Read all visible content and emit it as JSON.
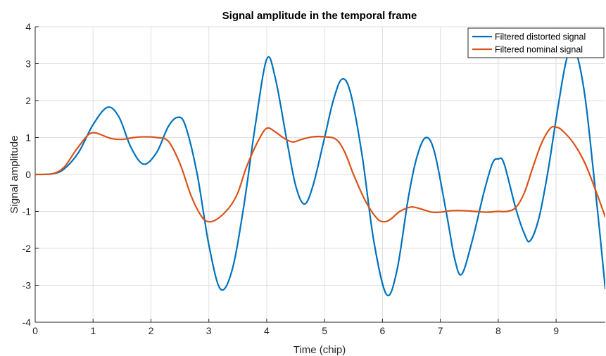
{
  "chart_data": {
    "type": "line",
    "title": "Signal amplitude in the temporal frame",
    "xlabel": "Time (chip)",
    "ylabel": "Signal amplitude",
    "xlim": [
      0,
      9.85
    ],
    "ylim": [
      -4,
      4
    ],
    "xticks": [
      0,
      1,
      2,
      3,
      4,
      5,
      6,
      7,
      8,
      9
    ],
    "yticks": [
      -4,
      -3,
      -2,
      -1,
      0,
      1,
      2,
      3,
      4
    ],
    "grid": true,
    "legend_position": "top-right",
    "series": [
      {
        "name": "Filtered distorted signal",
        "color": "#0072BD",
        "points": [
          [
            0,
            0
          ],
          [
            0.3,
            0.02
          ],
          [
            0.5,
            0.15
          ],
          [
            0.75,
            0.6
          ],
          [
            1.0,
            1.35
          ],
          [
            1.25,
            1.82
          ],
          [
            1.45,
            1.55
          ],
          [
            1.65,
            0.75
          ],
          [
            1.87,
            0.28
          ],
          [
            2.1,
            0.6
          ],
          [
            2.3,
            1.3
          ],
          [
            2.47,
            1.55
          ],
          [
            2.6,
            1.3
          ],
          [
            2.8,
            0.0
          ],
          [
            3.0,
            -1.9
          ],
          [
            3.2,
            -3.1
          ],
          [
            3.4,
            -2.6
          ],
          [
            3.6,
            -0.9
          ],
          [
            3.8,
            1.3
          ],
          [
            4.0,
            3.12
          ],
          [
            4.15,
            2.6
          ],
          [
            4.35,
            0.9
          ],
          [
            4.5,
            -0.3
          ],
          [
            4.65,
            -0.8
          ],
          [
            4.8,
            -0.3
          ],
          [
            5.0,
            1.0
          ],
          [
            5.15,
            2.0
          ],
          [
            5.3,
            2.58
          ],
          [
            5.45,
            2.2
          ],
          [
            5.65,
            0.5
          ],
          [
            5.85,
            -1.8
          ],
          [
            6.07,
            -3.25
          ],
          [
            6.25,
            -2.6
          ],
          [
            6.45,
            -0.6
          ],
          [
            6.6,
            0.5
          ],
          [
            6.75,
            1.0
          ],
          [
            6.9,
            0.6
          ],
          [
            7.1,
            -1.0
          ],
          [
            7.25,
            -2.3
          ],
          [
            7.37,
            -2.7
          ],
          [
            7.55,
            -1.8
          ],
          [
            7.75,
            -0.5
          ],
          [
            7.9,
            0.3
          ],
          [
            8.0,
            0.42
          ],
          [
            8.1,
            0.3
          ],
          [
            8.3,
            -0.9
          ],
          [
            8.45,
            -1.6
          ],
          [
            8.55,
            -1.8
          ],
          [
            8.7,
            -1.2
          ],
          [
            8.85,
            0.0
          ],
          [
            9.0,
            1.5
          ],
          [
            9.15,
            2.9
          ],
          [
            9.25,
            3.4
          ],
          [
            9.35,
            3.3
          ],
          [
            9.5,
            2.1
          ],
          [
            9.65,
            0.0
          ],
          [
            9.75,
            -1.5
          ],
          [
            9.85,
            -3.1
          ]
        ]
      },
      {
        "name": "Filtered nominal signal",
        "color": "#D95319",
        "points": [
          [
            0,
            0
          ],
          [
            0.3,
            0.02
          ],
          [
            0.5,
            0.2
          ],
          [
            0.7,
            0.65
          ],
          [
            0.9,
            1.05
          ],
          [
            1.0,
            1.13
          ],
          [
            1.1,
            1.1
          ],
          [
            1.3,
            0.98
          ],
          [
            1.5,
            0.95
          ],
          [
            1.7,
            1.0
          ],
          [
            1.9,
            1.02
          ],
          [
            2.1,
            1.0
          ],
          [
            2.3,
            0.9
          ],
          [
            2.5,
            0.3
          ],
          [
            2.7,
            -0.6
          ],
          [
            2.88,
            -1.15
          ],
          [
            3.0,
            -1.28
          ],
          [
            3.15,
            -1.2
          ],
          [
            3.35,
            -0.9
          ],
          [
            3.5,
            -0.5
          ],
          [
            3.65,
            0.2
          ],
          [
            3.85,
            0.9
          ],
          [
            4.0,
            1.25
          ],
          [
            4.15,
            1.15
          ],
          [
            4.3,
            0.98
          ],
          [
            4.45,
            0.88
          ],
          [
            4.6,
            0.95
          ],
          [
            4.8,
            1.02
          ],
          [
            5.0,
            1.02
          ],
          [
            5.2,
            0.95
          ],
          [
            5.35,
            0.6
          ],
          [
            5.5,
            0.0
          ],
          [
            5.7,
            -0.7
          ],
          [
            5.9,
            -1.18
          ],
          [
            6.03,
            -1.28
          ],
          [
            6.15,
            -1.2
          ],
          [
            6.3,
            -1.0
          ],
          [
            6.5,
            -0.88
          ],
          [
            6.7,
            -0.95
          ],
          [
            6.85,
            -1.02
          ],
          [
            7.0,
            -1.02
          ],
          [
            7.2,
            -0.98
          ],
          [
            7.4,
            -0.98
          ],
          [
            7.6,
            -1.0
          ],
          [
            7.8,
            -1.02
          ],
          [
            8.0,
            -1.0
          ],
          [
            8.15,
            -1.0
          ],
          [
            8.3,
            -0.9
          ],
          [
            8.45,
            -0.5
          ],
          [
            8.6,
            0.2
          ],
          [
            8.75,
            0.85
          ],
          [
            8.9,
            1.25
          ],
          [
            9.0,
            1.28
          ],
          [
            9.1,
            1.2
          ],
          [
            9.3,
            0.85
          ],
          [
            9.5,
            0.3
          ],
          [
            9.7,
            -0.5
          ],
          [
            9.85,
            -1.15
          ]
        ]
      }
    ]
  }
}
